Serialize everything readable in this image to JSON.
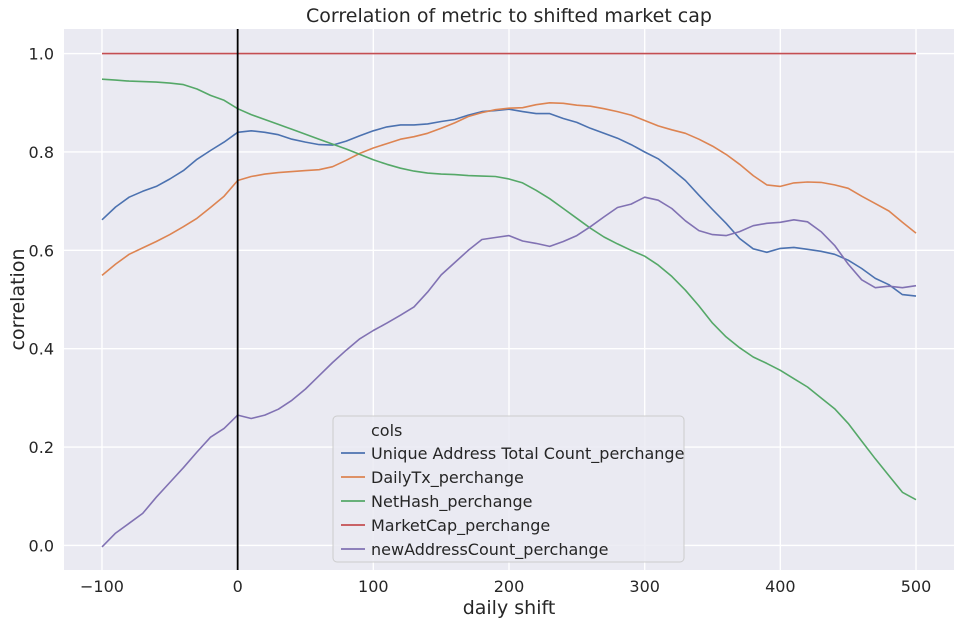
{
  "chart_data": {
    "type": "line",
    "title": "Correlation of metric to shifted market cap",
    "xlabel": "daily shift",
    "ylabel": "correlation",
    "xlim": [
      -128,
      528
    ],
    "ylim": [
      -0.05,
      1.05
    ],
    "x_ticks": [
      -100,
      0,
      100,
      200,
      300,
      400,
      500
    ],
    "x_tick_labels": [
      "−100",
      "0",
      "100",
      "200",
      "300",
      "400",
      "500"
    ],
    "y_ticks": [
      0.0,
      0.2,
      0.4,
      0.6,
      0.8,
      1.0
    ],
    "y_tick_labels": [
      "0.0",
      "0.2",
      "0.4",
      "0.6",
      "0.8",
      "1.0"
    ],
    "grid": true,
    "background": "#eaeaf2",
    "vline": {
      "x": 0,
      "color": "#000000"
    },
    "legend": {
      "title": "cols",
      "placement": "lower-center"
    },
    "series": [
      {
        "name": "Unique Address Total Count_perchange",
        "color": "#4c72b0",
        "points": [
          [
            -100,
            0.662
          ],
          [
            -90,
            0.688
          ],
          [
            -80,
            0.708
          ],
          [
            -70,
            0.72
          ],
          [
            -60,
            0.73
          ],
          [
            -50,
            0.745
          ],
          [
            -40,
            0.762
          ],
          [
            -30,
            0.785
          ],
          [
            -20,
            0.803
          ],
          [
            -10,
            0.82
          ],
          [
            0,
            0.84
          ],
          [
            10,
            0.843
          ],
          [
            20,
            0.84
          ],
          [
            30,
            0.835
          ],
          [
            40,
            0.826
          ],
          [
            50,
            0.82
          ],
          [
            60,
            0.815
          ],
          [
            70,
            0.814
          ],
          [
            80,
            0.822
          ],
          [
            90,
            0.833
          ],
          [
            100,
            0.843
          ],
          [
            110,
            0.851
          ],
          [
            120,
            0.855
          ],
          [
            130,
            0.855
          ],
          [
            140,
            0.857
          ],
          [
            150,
            0.862
          ],
          [
            160,
            0.866
          ],
          [
            170,
            0.875
          ],
          [
            180,
            0.882
          ],
          [
            190,
            0.884
          ],
          [
            200,
            0.887
          ],
          [
            210,
            0.882
          ],
          [
            220,
            0.878
          ],
          [
            230,
            0.878
          ],
          [
            240,
            0.868
          ],
          [
            250,
            0.86
          ],
          [
            260,
            0.848
          ],
          [
            270,
            0.838
          ],
          [
            280,
            0.828
          ],
          [
            290,
            0.815
          ],
          [
            300,
            0.8
          ],
          [
            310,
            0.786
          ],
          [
            320,
            0.765
          ],
          [
            330,
            0.742
          ],
          [
            340,
            0.712
          ],
          [
            350,
            0.683
          ],
          [
            360,
            0.655
          ],
          [
            370,
            0.624
          ],
          [
            380,
            0.603
          ],
          [
            390,
            0.596
          ],
          [
            400,
            0.604
          ],
          [
            410,
            0.606
          ],
          [
            420,
            0.602
          ],
          [
            430,
            0.598
          ],
          [
            440,
            0.592
          ],
          [
            450,
            0.58
          ],
          [
            460,
            0.563
          ],
          [
            470,
            0.543
          ],
          [
            480,
            0.53
          ],
          [
            490,
            0.51
          ],
          [
            500,
            0.507
          ]
        ]
      },
      {
        "name": "DailyTx_perchange",
        "color": "#dd8452",
        "points": [
          [
            -100,
            0.549
          ],
          [
            -90,
            0.572
          ],
          [
            -80,
            0.592
          ],
          [
            -70,
            0.605
          ],
          [
            -60,
            0.618
          ],
          [
            -50,
            0.632
          ],
          [
            -40,
            0.648
          ],
          [
            -30,
            0.665
          ],
          [
            -20,
            0.687
          ],
          [
            -10,
            0.71
          ],
          [
            0,
            0.742
          ],
          [
            10,
            0.75
          ],
          [
            20,
            0.755
          ],
          [
            30,
            0.758
          ],
          [
            40,
            0.76
          ],
          [
            50,
            0.762
          ],
          [
            60,
            0.764
          ],
          [
            70,
            0.77
          ],
          [
            80,
            0.783
          ],
          [
            90,
            0.797
          ],
          [
            100,
            0.808
          ],
          [
            110,
            0.817
          ],
          [
            120,
            0.826
          ],
          [
            130,
            0.831
          ],
          [
            140,
            0.838
          ],
          [
            150,
            0.848
          ],
          [
            160,
            0.859
          ],
          [
            170,
            0.872
          ],
          [
            180,
            0.88
          ],
          [
            190,
            0.886
          ],
          [
            200,
            0.889
          ],
          [
            210,
            0.89
          ],
          [
            220,
            0.896
          ],
          [
            230,
            0.9
          ],
          [
            240,
            0.899
          ],
          [
            250,
            0.895
          ],
          [
            260,
            0.893
          ],
          [
            270,
            0.888
          ],
          [
            280,
            0.882
          ],
          [
            290,
            0.875
          ],
          [
            300,
            0.864
          ],
          [
            310,
            0.853
          ],
          [
            320,
            0.845
          ],
          [
            330,
            0.838
          ],
          [
            340,
            0.826
          ],
          [
            350,
            0.812
          ],
          [
            360,
            0.795
          ],
          [
            370,
            0.775
          ],
          [
            380,
            0.752
          ],
          [
            390,
            0.733
          ],
          [
            400,
            0.73
          ],
          [
            410,
            0.737
          ],
          [
            420,
            0.739
          ],
          [
            430,
            0.738
          ],
          [
            440,
            0.733
          ],
          [
            450,
            0.726
          ],
          [
            460,
            0.71
          ],
          [
            470,
            0.695
          ],
          [
            480,
            0.68
          ],
          [
            490,
            0.657
          ],
          [
            500,
            0.635
          ]
        ]
      },
      {
        "name": "NetHash_perchange",
        "color": "#55a868",
        "points": [
          [
            -100,
            0.948
          ],
          [
            -90,
            0.946
          ],
          [
            -80,
            0.944
          ],
          [
            -70,
            0.943
          ],
          [
            -60,
            0.942
          ],
          [
            -50,
            0.94
          ],
          [
            -40,
            0.937
          ],
          [
            -30,
            0.928
          ],
          [
            -20,
            0.915
          ],
          [
            -10,
            0.905
          ],
          [
            0,
            0.888
          ],
          [
            10,
            0.876
          ],
          [
            20,
            0.866
          ],
          [
            30,
            0.856
          ],
          [
            40,
            0.846
          ],
          [
            50,
            0.836
          ],
          [
            60,
            0.826
          ],
          [
            70,
            0.816
          ],
          [
            80,
            0.806
          ],
          [
            90,
            0.795
          ],
          [
            100,
            0.784
          ],
          [
            110,
            0.775
          ],
          [
            120,
            0.767
          ],
          [
            130,
            0.761
          ],
          [
            140,
            0.757
          ],
          [
            150,
            0.755
          ],
          [
            160,
            0.754
          ],
          [
            170,
            0.752
          ],
          [
            180,
            0.751
          ],
          [
            190,
            0.75
          ],
          [
            200,
            0.745
          ],
          [
            210,
            0.737
          ],
          [
            220,
            0.722
          ],
          [
            230,
            0.705
          ],
          [
            240,
            0.685
          ],
          [
            250,
            0.665
          ],
          [
            260,
            0.645
          ],
          [
            270,
            0.627
          ],
          [
            280,
            0.613
          ],
          [
            290,
            0.6
          ],
          [
            300,
            0.588
          ],
          [
            310,
            0.57
          ],
          [
            320,
            0.547
          ],
          [
            330,
            0.519
          ],
          [
            340,
            0.487
          ],
          [
            350,
            0.452
          ],
          [
            360,
            0.424
          ],
          [
            370,
            0.402
          ],
          [
            380,
            0.383
          ],
          [
            390,
            0.37
          ],
          [
            400,
            0.356
          ],
          [
            410,
            0.339
          ],
          [
            420,
            0.322
          ],
          [
            430,
            0.3
          ],
          [
            440,
            0.278
          ],
          [
            450,
            0.248
          ],
          [
            460,
            0.212
          ],
          [
            470,
            0.176
          ],
          [
            480,
            0.142
          ],
          [
            490,
            0.108
          ],
          [
            500,
            0.093
          ]
        ]
      },
      {
        "name": "MarketCap_perchange",
        "color": "#c44e52",
        "points": [
          [
            -100,
            1.0
          ],
          [
            500,
            1.0
          ]
        ]
      },
      {
        "name": "newAddressCount_perchange",
        "color": "#8172b3",
        "points": [
          [
            -100,
            -0.003
          ],
          [
            -90,
            0.025
          ],
          [
            -80,
            0.045
          ],
          [
            -70,
            0.065
          ],
          [
            -60,
            0.098
          ],
          [
            -50,
            0.128
          ],
          [
            -40,
            0.158
          ],
          [
            -30,
            0.19
          ],
          [
            -20,
            0.22
          ],
          [
            -10,
            0.238
          ],
          [
            0,
            0.265
          ],
          [
            10,
            0.258
          ],
          [
            20,
            0.265
          ],
          [
            30,
            0.277
          ],
          [
            40,
            0.295
          ],
          [
            50,
            0.318
          ],
          [
            60,
            0.345
          ],
          [
            70,
            0.372
          ],
          [
            80,
            0.397
          ],
          [
            90,
            0.42
          ],
          [
            100,
            0.437
          ],
          [
            110,
            0.452
          ],
          [
            120,
            0.468
          ],
          [
            130,
            0.485
          ],
          [
            140,
            0.515
          ],
          [
            150,
            0.55
          ],
          [
            160,
            0.575
          ],
          [
            170,
            0.6
          ],
          [
            180,
            0.622
          ],
          [
            190,
            0.626
          ],
          [
            200,
            0.63
          ],
          [
            210,
            0.619
          ],
          [
            220,
            0.614
          ],
          [
            230,
            0.608
          ],
          [
            240,
            0.618
          ],
          [
            250,
            0.63
          ],
          [
            260,
            0.648
          ],
          [
            270,
            0.668
          ],
          [
            280,
            0.687
          ],
          [
            290,
            0.694
          ],
          [
            300,
            0.708
          ],
          [
            310,
            0.702
          ],
          [
            320,
            0.685
          ],
          [
            330,
            0.66
          ],
          [
            340,
            0.64
          ],
          [
            350,
            0.632
          ],
          [
            360,
            0.63
          ],
          [
            370,
            0.638
          ],
          [
            380,
            0.65
          ],
          [
            390,
            0.655
          ],
          [
            400,
            0.657
          ],
          [
            410,
            0.662
          ],
          [
            420,
            0.658
          ],
          [
            430,
            0.638
          ],
          [
            440,
            0.61
          ],
          [
            450,
            0.572
          ],
          [
            460,
            0.54
          ],
          [
            470,
            0.524
          ],
          [
            480,
            0.527
          ],
          [
            490,
            0.524
          ],
          [
            500,
            0.528
          ]
        ]
      }
    ]
  }
}
